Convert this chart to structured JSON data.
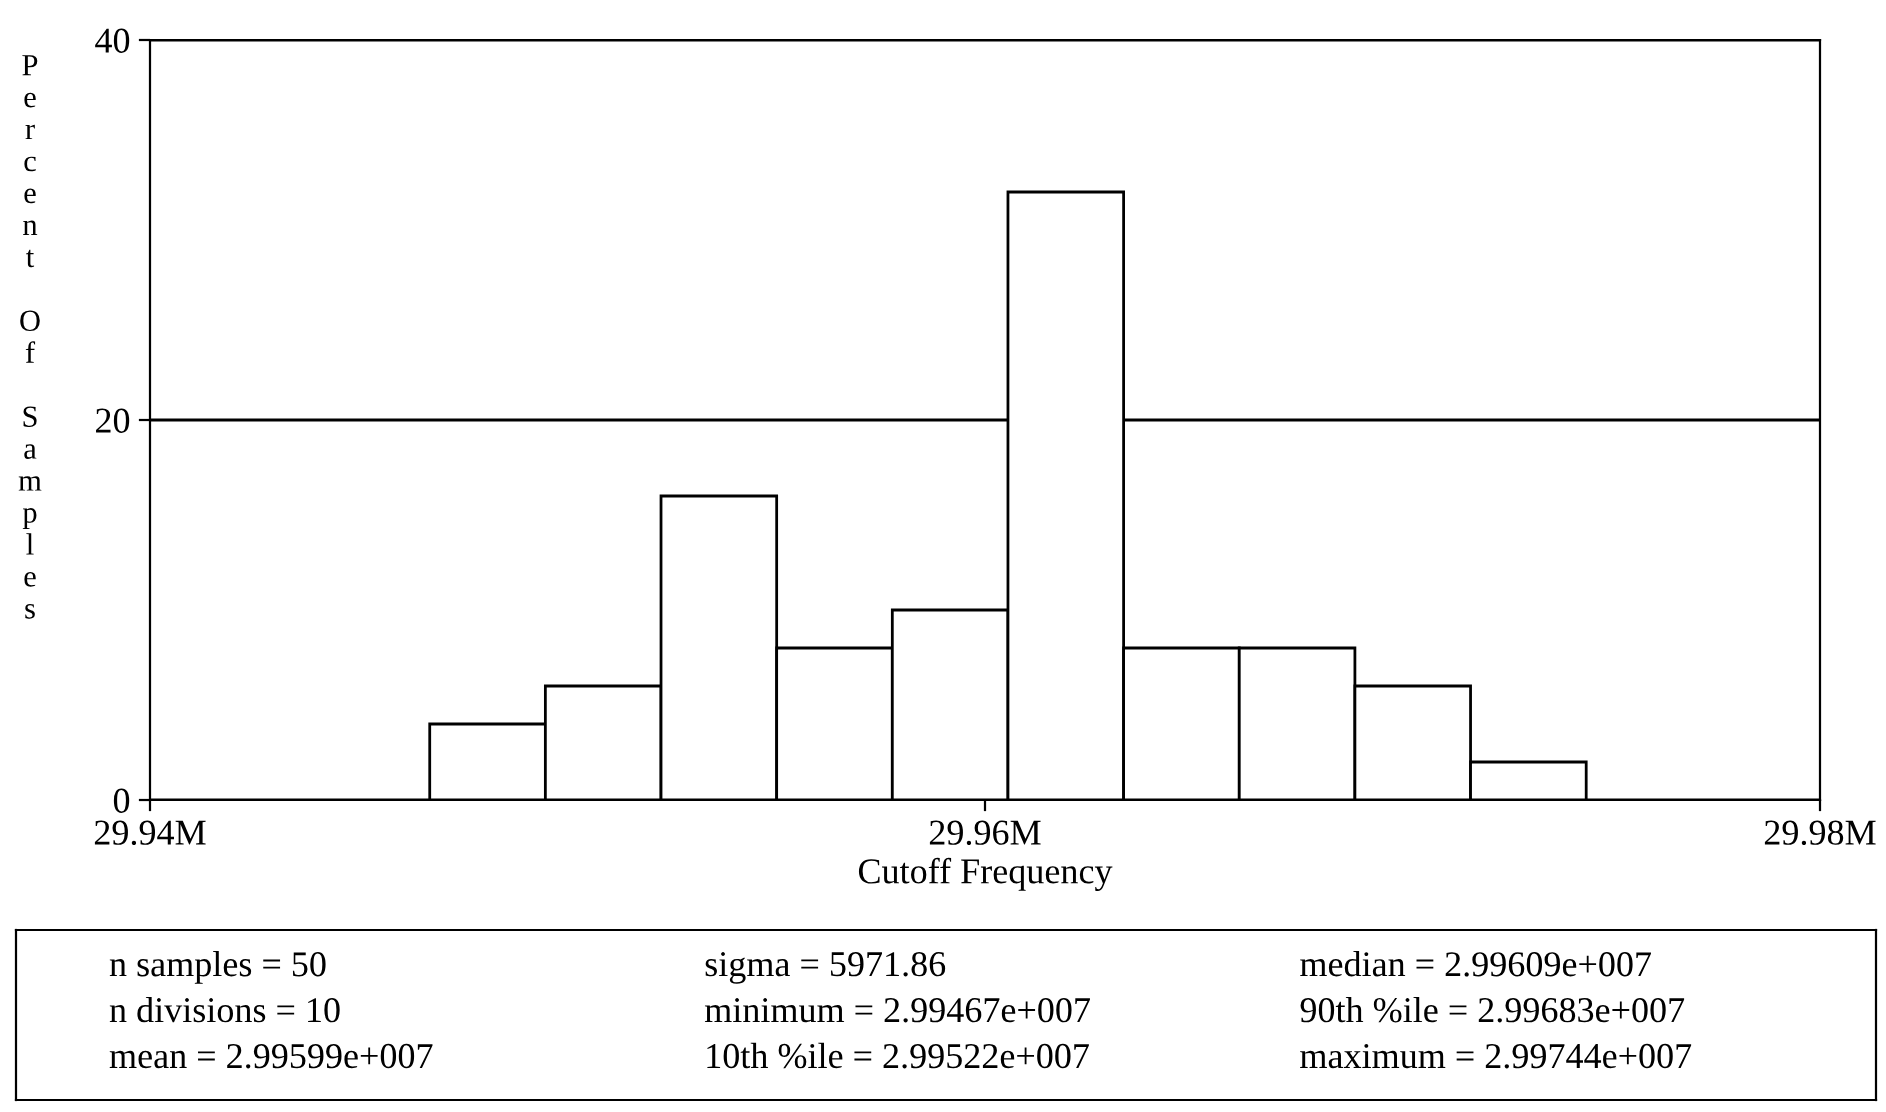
{
  "chart_data": {
    "type": "histogram",
    "xlabel": "Cutoff Frequency",
    "ylabel": "Percent Of Samples",
    "bins": [
      29.9467,
      29.94947,
      29.95224,
      29.95501,
      29.95778,
      29.96055,
      29.96332,
      29.96609,
      29.96886,
      29.97163,
      29.9744
    ],
    "values": [
      4,
      6,
      16,
      8,
      10,
      32,
      8,
      8,
      6,
      2
    ],
    "color": "#ffffff",
    "xlim": [
      29.94,
      29.98
    ],
    "xticks": [
      {
        "value": 29.94,
        "label": "29.94M"
      },
      {
        "value": 29.96,
        "label": "29.96M"
      },
      {
        "value": 29.98,
        "label": "29.98M"
      }
    ],
    "ylim": [
      0,
      40
    ],
    "yticks": [
      0,
      20,
      40
    ],
    "grid": "y",
    "annotations": [
      "n samples = 50",
      "n divisions = 10",
      "mean = 2.99599e+007",
      "sigma = 5971.86",
      "minimum = 2.99467e+007",
      "10th %ile = 2.99522e+007",
      "median = 2.99609e+007",
      "90th %ile = 2.99683e+007",
      "maximum = 2.99744e+007"
    ]
  }
}
